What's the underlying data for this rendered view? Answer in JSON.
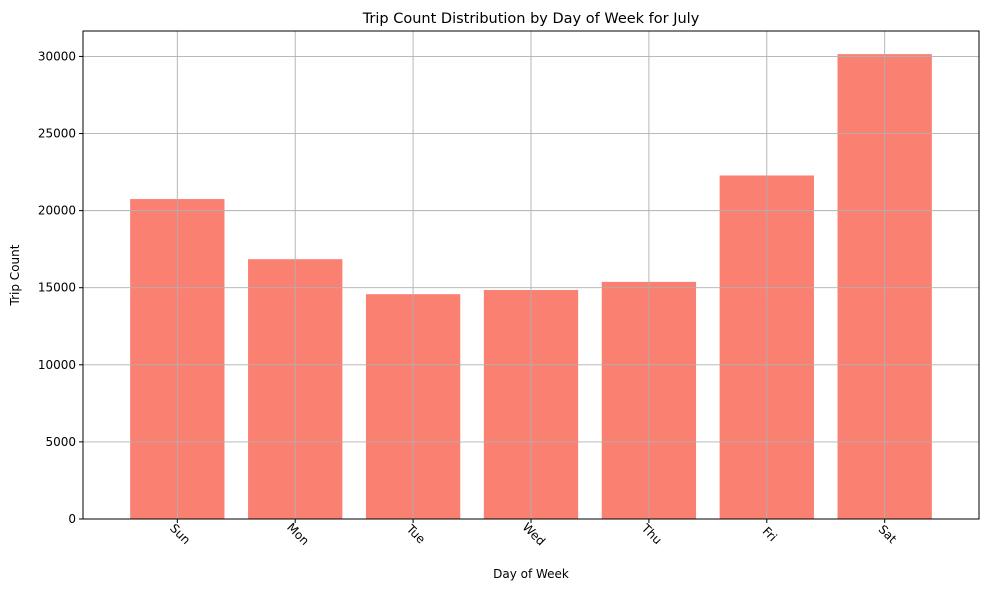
{
  "chart_data": {
    "type": "bar",
    "title": "Trip Count Distribution by Day of Week for July",
    "xlabel": "Day of Week",
    "ylabel": "Trip Count",
    "categories": [
      "Sun",
      "Mon",
      "Tue",
      "Wed",
      "Thu",
      "Fri",
      "Sat"
    ],
    "values": [
      20750,
      16850,
      14580,
      14850,
      15380,
      22280,
      30150
    ],
    "ylim": [
      0,
      31650
    ],
    "yticks": [
      0,
      5000,
      10000,
      15000,
      20000,
      25000,
      30000
    ],
    "grid": true,
    "x_tick_rotation_degrees": 45,
    "bar_color": "#fa8072",
    "grid_color": "#b0b0b0",
    "axis_color": "#000000"
  }
}
